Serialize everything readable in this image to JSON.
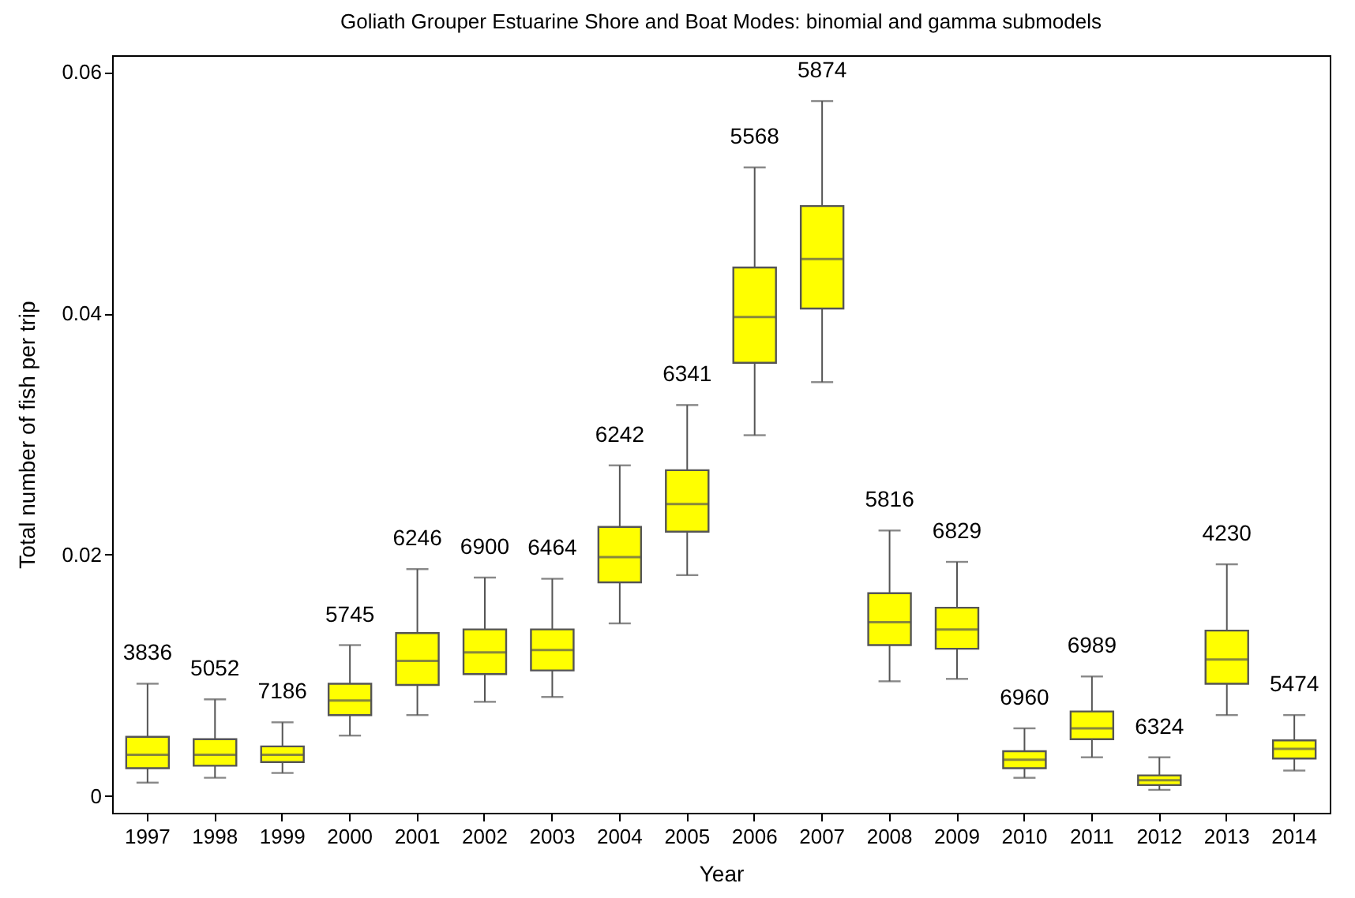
{
  "chart_data": {
    "type": "box",
    "title": "Goliath Grouper Estuarine Shore and Boat Modes: binomial and gamma submodels",
    "xlabel": "Year",
    "ylabel": "Total number of fish per trip",
    "categories": [
      "1997",
      "1998",
      "1999",
      "2000",
      "2001",
      "2002",
      "2003",
      "2004",
      "2005",
      "2006",
      "2007",
      "2008",
      "2009",
      "2010",
      "2011",
      "2012",
      "2013",
      "2014"
    ],
    "color": "#ffff00",
    "ylim": [
      -0.0014,
      0.0614
    ],
    "yticks": [
      0,
      0.02,
      0.04,
      0.06
    ],
    "grid": false,
    "boxes": [
      {
        "low": 0.0011,
        "q1": 0.0023,
        "median": 0.0034,
        "q3": 0.0049,
        "high": 0.0093
      },
      {
        "low": 0.0015,
        "q1": 0.0025,
        "median": 0.0034,
        "q3": 0.0047,
        "high": 0.008
      },
      {
        "low": 0.0019,
        "q1": 0.0028,
        "median": 0.0034,
        "q3": 0.0041,
        "high": 0.0061
      },
      {
        "low": 0.005,
        "q1": 0.0067,
        "median": 0.0079,
        "q3": 0.0093,
        "high": 0.0125
      },
      {
        "low": 0.0067,
        "q1": 0.0092,
        "median": 0.0112,
        "q3": 0.0135,
        "high": 0.0188
      },
      {
        "low": 0.0078,
        "q1": 0.0101,
        "median": 0.0119,
        "q3": 0.0138,
        "high": 0.0181
      },
      {
        "low": 0.0082,
        "q1": 0.0104,
        "median": 0.0121,
        "q3": 0.0138,
        "high": 0.018
      },
      {
        "low": 0.0143,
        "q1": 0.0177,
        "median": 0.0198,
        "q3": 0.0223,
        "high": 0.0274
      },
      {
        "low": 0.0183,
        "q1": 0.0219,
        "median": 0.0242,
        "q3": 0.027,
        "high": 0.0324
      },
      {
        "low": 0.0299,
        "q1": 0.0359,
        "median": 0.0397,
        "q3": 0.0438,
        "high": 0.0521
      },
      {
        "low": 0.0343,
        "q1": 0.0404,
        "median": 0.0445,
        "q3": 0.0489,
        "high": 0.0576
      },
      {
        "low": 0.0095,
        "q1": 0.0125,
        "median": 0.0144,
        "q3": 0.0168,
        "high": 0.022
      },
      {
        "low": 0.0097,
        "q1": 0.0122,
        "median": 0.0138,
        "q3": 0.0156,
        "high": 0.0194
      },
      {
        "low": 0.0015,
        "q1": 0.0023,
        "median": 0.003,
        "q3": 0.0037,
        "high": 0.0056
      },
      {
        "low": 0.0032,
        "q1": 0.0047,
        "median": 0.0056,
        "q3": 0.007,
        "high": 0.0099
      },
      {
        "low": 0.0005,
        "q1": 0.0009,
        "median": 0.0013,
        "q3": 0.0017,
        "high": 0.0032
      },
      {
        "low": 0.0067,
        "q1": 0.0093,
        "median": 0.0113,
        "q3": 0.0137,
        "high": 0.0192
      },
      {
        "low": 0.0021,
        "q1": 0.0031,
        "median": 0.0039,
        "q3": 0.0046,
        "high": 0.0067
      }
    ],
    "annotations": [
      {
        "text": "3836",
        "x": "1997",
        "y": 0.0093
      },
      {
        "text": "5052",
        "x": "1998",
        "y": 0.008
      },
      {
        "text": "7186",
        "x": "1999",
        "y": 0.0061
      },
      {
        "text": "5745",
        "x": "2000",
        "y": 0.0125
      },
      {
        "text": "6246",
        "x": "2001",
        "y": 0.0188
      },
      {
        "text": "6900",
        "x": "2002",
        "y": 0.0181
      },
      {
        "text": "6464",
        "x": "2003",
        "y": 0.018
      },
      {
        "text": "6242",
        "x": "2004",
        "y": 0.0274
      },
      {
        "text": "6341",
        "x": "2005",
        "y": 0.0324
      },
      {
        "text": "5568",
        "x": "2006",
        "y": 0.0521
      },
      {
        "text": "5874",
        "x": "2007",
        "y": 0.0576
      },
      {
        "text": "5816",
        "x": "2008",
        "y": 0.022
      },
      {
        "text": "6829",
        "x": "2009",
        "y": 0.0194
      },
      {
        "text": "6960",
        "x": "2010",
        "y": 0.0056
      },
      {
        "text": "6989",
        "x": "2011",
        "y": 0.0099
      },
      {
        "text": "6324",
        "x": "2012",
        "y": 0.0032
      },
      {
        "text": "4230",
        "x": "2013",
        "y": 0.0192
      },
      {
        "text": "5474",
        "x": "2014",
        "y": 0.0067
      }
    ]
  }
}
